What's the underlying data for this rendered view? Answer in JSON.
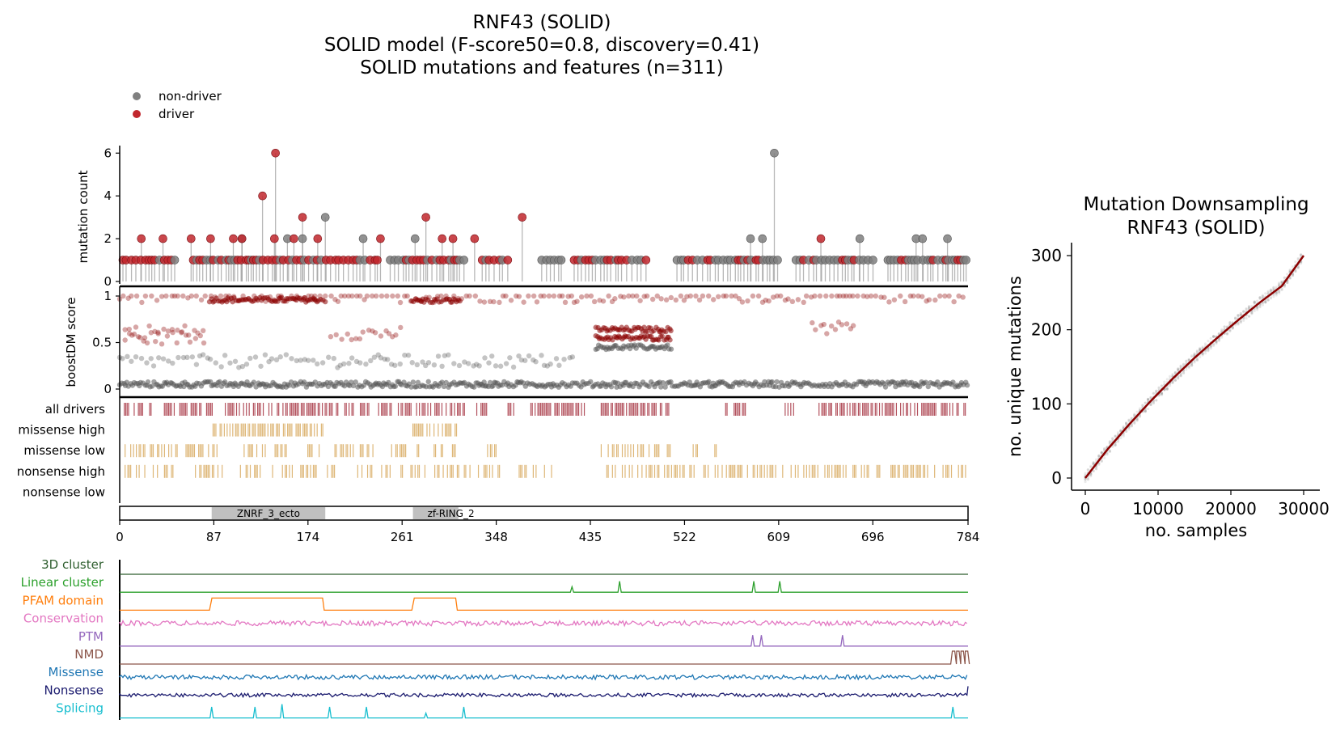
{
  "title": {
    "line1": "RNF43 (SOLID)",
    "line2": "SOLID model (F-score50=0.8, discovery=0.41)",
    "line3": "SOLID mutations and features (n=311)"
  },
  "legend": {
    "position": "top-left",
    "items": [
      {
        "label": "non-driver",
        "color": "#808080"
      },
      {
        "label": "driver",
        "color": "#c1272d"
      }
    ]
  },
  "colors": {
    "driver": "#c1272d",
    "non_driver": "#7f7f7f",
    "score_driver": "#8b0000",
    "score_non_driver": "#555555",
    "all_drivers_track": "#b3525e",
    "consequence_track": "#deb778",
    "domain_fill": "#c0c0c0"
  },
  "chart_data": [
    {
      "type": "lollipop",
      "name": "mutation-count-panel",
      "ylabel": "mutation count",
      "ylim": [
        0,
        6.2
      ],
      "yticks": [
        0,
        2,
        4,
        6
      ],
      "xlim": [
        0,
        784
      ],
      "peaks": [
        {
          "pos": 20,
          "count": 2,
          "driver": true
        },
        {
          "pos": 40,
          "count": 2,
          "driver": true
        },
        {
          "pos": 66,
          "count": 2,
          "driver": true
        },
        {
          "pos": 84,
          "count": 2,
          "driver": true
        },
        {
          "pos": 105,
          "count": 2,
          "driver": true
        },
        {
          "pos": 113,
          "count": 2,
          "driver": false
        },
        {
          "pos": 113,
          "count": 2,
          "driver": true
        },
        {
          "pos": 132,
          "count": 4,
          "driver": true
        },
        {
          "pos": 144,
          "count": 6,
          "driver": true
        },
        {
          "pos": 143,
          "count": 2,
          "driver": true
        },
        {
          "pos": 155,
          "count": 2,
          "driver": false
        },
        {
          "pos": 161,
          "count": 2,
          "driver": true
        },
        {
          "pos": 169,
          "count": 3,
          "driver": true
        },
        {
          "pos": 169,
          "count": 2,
          "driver": false
        },
        {
          "pos": 183,
          "count": 2,
          "driver": true
        },
        {
          "pos": 190,
          "count": 3,
          "driver": false
        },
        {
          "pos": 225,
          "count": 2,
          "driver": false
        },
        {
          "pos": 241,
          "count": 2,
          "driver": true
        },
        {
          "pos": 273,
          "count": 2,
          "driver": false
        },
        {
          "pos": 283,
          "count": 3,
          "driver": true
        },
        {
          "pos": 298,
          "count": 2,
          "driver": true
        },
        {
          "pos": 308,
          "count": 2,
          "driver": true
        },
        {
          "pos": 328,
          "count": 2,
          "driver": true
        },
        {
          "pos": 372,
          "count": 3,
          "driver": true
        },
        {
          "pos": 583,
          "count": 2,
          "driver": false
        },
        {
          "pos": 594,
          "count": 2,
          "driver": false
        },
        {
          "pos": 605,
          "count": 6,
          "driver": false
        },
        {
          "pos": 648,
          "count": 2,
          "driver": true
        },
        {
          "pos": 684,
          "count": 2,
          "driver": false
        },
        {
          "pos": 736,
          "count": 2,
          "driver": false
        },
        {
          "pos": 742,
          "count": 2,
          "driver": false
        },
        {
          "pos": 765,
          "count": 2,
          "driver": false
        }
      ],
      "dense_count_1_segments": [
        {
          "from": 3,
          "to": 55,
          "driver_share": 0.8
        },
        {
          "from": 68,
          "to": 240,
          "driver_share": 0.65
        },
        {
          "from": 250,
          "to": 320,
          "driver_share": 0.6
        },
        {
          "from": 335,
          "to": 360,
          "driver_share": 0.5
        },
        {
          "from": 390,
          "to": 410,
          "driver_share": 0.0
        },
        {
          "from": 420,
          "to": 490,
          "driver_share": 0.6
        },
        {
          "from": 515,
          "to": 610,
          "driver_share": 0.3
        },
        {
          "from": 625,
          "to": 700,
          "driver_share": 0.3
        },
        {
          "from": 710,
          "to": 784,
          "driver_share": 0.2
        }
      ]
    },
    {
      "type": "scatter",
      "name": "boostdm-score-panel",
      "ylabel": "boostDM score",
      "ylim": [
        0,
        1
      ],
      "yticks": [
        0,
        0.5,
        1
      ],
      "yticklabels": [
        "0",
        "0.5",
        "1"
      ],
      "xlim": [
        0,
        784
      ],
      "clusters": [
        {
          "from": 83,
          "to": 190,
          "score": 0.96,
          "driver": true
        },
        {
          "from": 270,
          "to": 315,
          "score": 0.95,
          "driver": true
        },
        {
          "from": 0,
          "to": 784,
          "score": 1.0,
          "driver": true,
          "sparse": true
        },
        {
          "from": 5,
          "to": 80,
          "score": 0.62,
          "driver": true,
          "sparse": true
        },
        {
          "from": 5,
          "to": 80,
          "score": 0.55,
          "driver": true,
          "sparse": true
        },
        {
          "from": 195,
          "to": 260,
          "score": 0.6,
          "driver": true,
          "sparse": true
        },
        {
          "from": 440,
          "to": 510,
          "score": 0.64,
          "driver": true
        },
        {
          "from": 440,
          "to": 510,
          "score": 0.55,
          "driver": true
        },
        {
          "from": 440,
          "to": 510,
          "score": 0.45,
          "driver": false
        },
        {
          "from": 640,
          "to": 680,
          "score": 0.65,
          "driver": true,
          "sparse": true
        },
        {
          "from": 0,
          "to": 420,
          "score": 0.3,
          "driver": false,
          "sparse": true
        },
        {
          "from": 0,
          "to": 784,
          "score": 0.02,
          "driver": false
        }
      ]
    },
    {
      "type": "raster",
      "name": "consequence-tracks",
      "tracks": [
        {
          "label": "all drivers",
          "color": "#b3525e",
          "ranges": [
            [
              3,
              33
            ],
            [
              40,
              86
            ],
            [
              95,
              319
            ],
            [
              330,
              340
            ],
            [
              355,
              365
            ],
            [
              380,
              430
            ],
            [
              445,
              510
            ],
            [
              560,
              580
            ],
            [
              615,
              625
            ],
            [
              645,
              784
            ]
          ],
          "density": 0.65
        },
        {
          "label": "missense high",
          "color": "#deb778",
          "ranges": [
            [
              85,
              188
            ],
            [
              271,
              313
            ]
          ],
          "density": 0.7
        },
        {
          "label": "missense low",
          "color": "#deb778",
          "ranges": [
            [
              5,
              55
            ],
            [
              60,
              90
            ],
            [
              115,
              155
            ],
            [
              170,
              185
            ],
            [
              195,
              235
            ],
            [
              250,
              265
            ],
            [
              275,
              315
            ],
            [
              340,
              350
            ],
            [
              445,
              510
            ],
            [
              530,
              535
            ],
            [
              550,
              560
            ],
            [
              695,
              698
            ]
          ],
          "density": 0.45
        },
        {
          "label": "nonsense high",
          "color": "#deb778",
          "ranges": [
            [
              5,
              55
            ],
            [
              70,
              130
            ],
            [
              140,
              200
            ],
            [
              220,
              250
            ],
            [
              260,
              400
            ],
            [
              445,
              784
            ]
          ],
          "density": 0.4
        },
        {
          "label": "nonsense low",
          "color": "#deb778",
          "ranges": [],
          "density": 0
        }
      ]
    },
    {
      "type": "domains",
      "name": "pfam-domain-bar",
      "xlim": [
        0,
        784
      ],
      "xticks": [
        0,
        87,
        174,
        261,
        348,
        435,
        522,
        609,
        696,
        784
      ],
      "domains": [
        {
          "label": "ZNRF_3_ecto",
          "start": 85,
          "end": 190
        },
        {
          "label": "zf-RING_2",
          "start": 271,
          "end": 313
        }
      ]
    },
    {
      "type": "line",
      "name": "feature-tracks",
      "xlim": [
        0,
        784
      ],
      "tracks": [
        {
          "label": "3D cluster",
          "color": "#2e5e2e",
          "kind": "flat"
        },
        {
          "label": "Linear cluster",
          "color": "#2ca02c",
          "kind": "spikes",
          "spikes": [
            [
              418,
              0.4
            ],
            [
              462,
              0.8
            ],
            [
              586,
              0.8
            ],
            [
              610,
              0.8
            ]
          ]
        },
        {
          "label": "PFAM domain",
          "color": "#ff7f0e",
          "kind": "steps",
          "ranges": [
            [
              83,
              189
            ],
            [
              270,
              312
            ]
          ]
        },
        {
          "label": "Conservation",
          "color": "#e377c2",
          "kind": "noise",
          "amp": 0.35
        },
        {
          "label": "PTM",
          "color": "#9467bd",
          "kind": "spikes",
          "spikes": [
            [
              585,
              0.8
            ],
            [
              593,
              0.8
            ],
            [
              668,
              0.8
            ]
          ]
        },
        {
          "label": "NMD",
          "color": "#8c564b",
          "kind": "nmd",
          "from": 768
        },
        {
          "label": "Missense",
          "color": "#1f77b4",
          "kind": "noise",
          "amp": 0.3
        },
        {
          "label": "Nonsense",
          "color": "#1a1a6e",
          "kind": "noise",
          "amp": 0.25
        },
        {
          "label": "Splicing",
          "color": "#17becf",
          "kind": "spikes",
          "spikes": [
            [
              85,
              0.8
            ],
            [
              125,
              0.8
            ],
            [
              150,
              1.0
            ],
            [
              194,
              0.8
            ],
            [
              228,
              0.8
            ],
            [
              283,
              0.35
            ],
            [
              318,
              0.8
            ],
            [
              770,
              0.8
            ]
          ]
        }
      ]
    },
    {
      "type": "line",
      "name": "downsampling-panel",
      "title": [
        "Mutation Downsampling",
        "RNF43 (SOLID)"
      ],
      "xlabel": "no. samples",
      "ylabel": "no. unique mutations",
      "xlim": [
        0,
        31000
      ],
      "ylim": [
        0,
        310
      ],
      "xticks": [
        0,
        10000,
        20000,
        30000
      ],
      "yticks": [
        0,
        100,
        200,
        300
      ],
      "series": [
        {
          "kind": "mean",
          "color": "#8b0000",
          "x": [
            0,
            3000,
            6000,
            9000,
            12000,
            15000,
            18000,
            21000,
            24000,
            27000,
            30000
          ],
          "y": [
            0,
            38,
            72,
            104,
            134,
            162,
            188,
            213,
            237,
            259,
            300
          ]
        }
      ]
    }
  ]
}
